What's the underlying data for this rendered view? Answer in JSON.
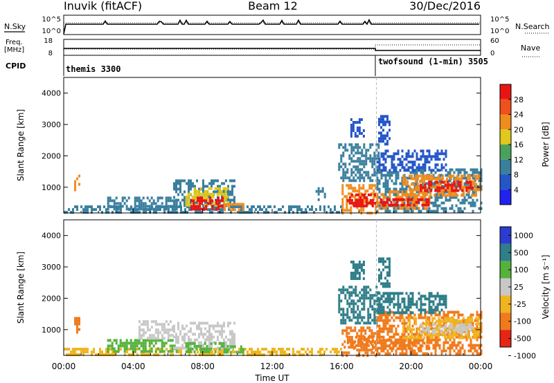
{
  "header": {
    "station": "Inuvik (fitACF)",
    "beam": "Beam 12",
    "date": "30/Dec/2016"
  },
  "sky_panel": {
    "left_label": "N.Sky",
    "right_label": "N.Search",
    "tick_top": "10^5",
    "tick_bottom": "10^0"
  },
  "freq_panel": {
    "left_label_1": "Freq.",
    "left_label_2": "[MHz]",
    "right_label": "Nave",
    "left_tick_top": "18",
    "left_tick_bottom": "8",
    "right_tick_top": "60",
    "right_tick_bottom": "0"
  },
  "cpid_panel": {
    "label": "CPID",
    "mode_1": "themis 3300",
    "mode_2": "twofsound (1-min) 3505"
  },
  "x_axis": {
    "title": "Time UT",
    "ticks": [
      "00:00",
      "04:00",
      "08:00",
      "12:00",
      "16:00",
      "20:00",
      "00:00"
    ]
  },
  "colors": {
    "frame": "#000000",
    "mode_change_line": "#bbbbbb"
  },
  "chart_data": [
    {
      "type": "heatmap",
      "name": "power",
      "ylabel": "Slant Range [km]",
      "ylim": [
        180,
        4500
      ],
      "yticks": [
        1000,
        2000,
        3000,
        4000
      ],
      "colorbar": {
        "title": "Power [dB]",
        "ticks": [
          "4",
          "8",
          "12",
          "16",
          "20",
          "24",
          "28"
        ],
        "levels": [
          {
            "from": 0,
            "to": 4,
            "color": "#1f22f0"
          },
          {
            "from": 4,
            "to": 8,
            "color": "#2556c8"
          },
          {
            "from": 8,
            "to": 12,
            "color": "#3a7f9e"
          },
          {
            "from": 12,
            "to": 16,
            "color": "#4aa15c"
          },
          {
            "from": 16,
            "to": 20,
            "color": "#e0c81c"
          },
          {
            "from": 20,
            "to": 24,
            "color": "#f08c1e"
          },
          {
            "from": 24,
            "to": 28,
            "color": "#f0501c"
          },
          {
            "from": 28,
            "to": 32,
            "color": "#e81414"
          }
        ]
      },
      "regions": [
        {
          "t": [
            0.6,
            0.95
          ],
          "r": [
            900,
            1400
          ],
          "value": 22
        },
        {
          "t": [
            0,
            16
          ],
          "r": [
            180,
            420
          ],
          "value": 9
        },
        {
          "t": [
            2.5,
            6.5
          ],
          "r": [
            300,
            700
          ],
          "value": 10
        },
        {
          "t": [
            6.3,
            9.8
          ],
          "r": [
            400,
            1250
          ],
          "value": 10
        },
        {
          "t": [
            7.0,
            9.5
          ],
          "r": [
            450,
            1000
          ],
          "value": 17
        },
        {
          "t": [
            7.3,
            9.2
          ],
          "r": [
            300,
            700
          ],
          "value": 28
        },
        {
          "t": [
            9.2,
            10.3
          ],
          "r": [
            250,
            500
          ],
          "value": 22
        },
        {
          "t": [
            14.5,
            15.0
          ],
          "r": [
            600,
            1000
          ],
          "value": 10
        },
        {
          "t": [
            15.8,
            18.1
          ],
          "r": [
            1200,
            2400
          ],
          "value": 8
        },
        {
          "t": [
            16.0,
            18.0
          ],
          "r": [
            200,
            1100
          ],
          "value": 20
        },
        {
          "t": [
            16.3,
            18.0
          ],
          "r": [
            400,
            800
          ],
          "value": 29
        },
        {
          "t": [
            18.0,
            24.0
          ],
          "r": [
            200,
            1600
          ],
          "value": 10
        },
        {
          "t": [
            18.0,
            21.0
          ],
          "r": [
            300,
            900
          ],
          "value": 22
        },
        {
          "t": [
            18.2,
            21.0
          ],
          "r": [
            400,
            650
          ],
          "value": 29
        },
        {
          "t": [
            19.5,
            24.0
          ],
          "r": [
            700,
            1400
          ],
          "value": 21
        },
        {
          "t": [
            20.5,
            23.5
          ],
          "r": [
            850,
            1200
          ],
          "value": 28
        },
        {
          "t": [
            18.0,
            22.0
          ],
          "r": [
            1500,
            2200
          ],
          "value": 6
        },
        {
          "t": [
            18.1,
            18.7
          ],
          "r": [
            2400,
            3300
          ],
          "value": 6
        },
        {
          "t": [
            16.5,
            17.3
          ],
          "r": [
            2600,
            3200
          ],
          "value": 6
        }
      ]
    },
    {
      "type": "heatmap",
      "name": "velocity",
      "ylabel": "Slant Range [km]",
      "ylim": [
        180,
        4500
      ],
      "yticks": [
        1000,
        2000,
        3000,
        4000
      ],
      "colorbar": {
        "title": "Velocity [m s⁻¹]",
        "ticks": [
          "1000",
          "500",
          "100",
          "25",
          "-25",
          "-100",
          "-500",
          "-1000"
        ],
        "levels": [
          {
            "from": 500,
            "to": 1500,
            "color": "#2c3cd2"
          },
          {
            "from": 100,
            "to": 500,
            "color": "#2f7e88"
          },
          {
            "from": 25,
            "to": 100,
            "color": "#54b23c"
          },
          {
            "from": -25,
            "to": 25,
            "color": "#c8c8c8"
          },
          {
            "from": -100,
            "to": -25,
            "color": "#f0b41e"
          },
          {
            "from": -500,
            "to": -100,
            "color": "#f07a1c"
          },
          {
            "from": -1500,
            "to": -500,
            "color": "#e82414"
          }
        ]
      },
      "regions": [
        {
          "t": [
            0.6,
            0.95
          ],
          "r": [
            900,
            1400
          ],
          "value": -300
        },
        {
          "t": [
            0,
            16
          ],
          "r": [
            180,
            420
          ],
          "value": -60
        },
        {
          "t": [
            2.5,
            6.5
          ],
          "r": [
            300,
            700
          ],
          "value": 50
        },
        {
          "t": [
            4.3,
            6.3
          ],
          "r": [
            700,
            1300
          ],
          "value": 0
        },
        {
          "t": [
            6.3,
            9.8
          ],
          "r": [
            400,
            1250
          ],
          "value": 0
        },
        {
          "t": [
            7.0,
            9.5
          ],
          "r": [
            300,
            600
          ],
          "value": 60
        },
        {
          "t": [
            9.2,
            10.3
          ],
          "r": [
            250,
            500
          ],
          "value": 50
        },
        {
          "t": [
            15.8,
            18.1
          ],
          "r": [
            1200,
            2400
          ],
          "value": 300
        },
        {
          "t": [
            16.0,
            18.0
          ],
          "r": [
            200,
            1100
          ],
          "value": -150
        },
        {
          "t": [
            16.3,
            18.0
          ],
          "r": [
            400,
            800
          ],
          "value": -300
        },
        {
          "t": [
            18.0,
            24.0
          ],
          "r": [
            200,
            1600
          ],
          "value": -150
        },
        {
          "t": [
            18.2,
            21.0
          ],
          "r": [
            400,
            700
          ],
          "value": -300
        },
        {
          "t": [
            19.5,
            24.0
          ],
          "r": [
            700,
            1400
          ],
          "value": -60
        },
        {
          "t": [
            20.5,
            23.5
          ],
          "r": [
            850,
            1200
          ],
          "value": 0
        },
        {
          "t": [
            18.0,
            22.0
          ],
          "r": [
            1500,
            2200
          ],
          "value": 300
        },
        {
          "t": [
            18.1,
            18.7
          ],
          "r": [
            2400,
            3300
          ],
          "value": 300
        },
        {
          "t": [
            16.5,
            17.3
          ],
          "r": [
            2600,
            3200
          ],
          "value": 200
        }
      ]
    }
  ]
}
